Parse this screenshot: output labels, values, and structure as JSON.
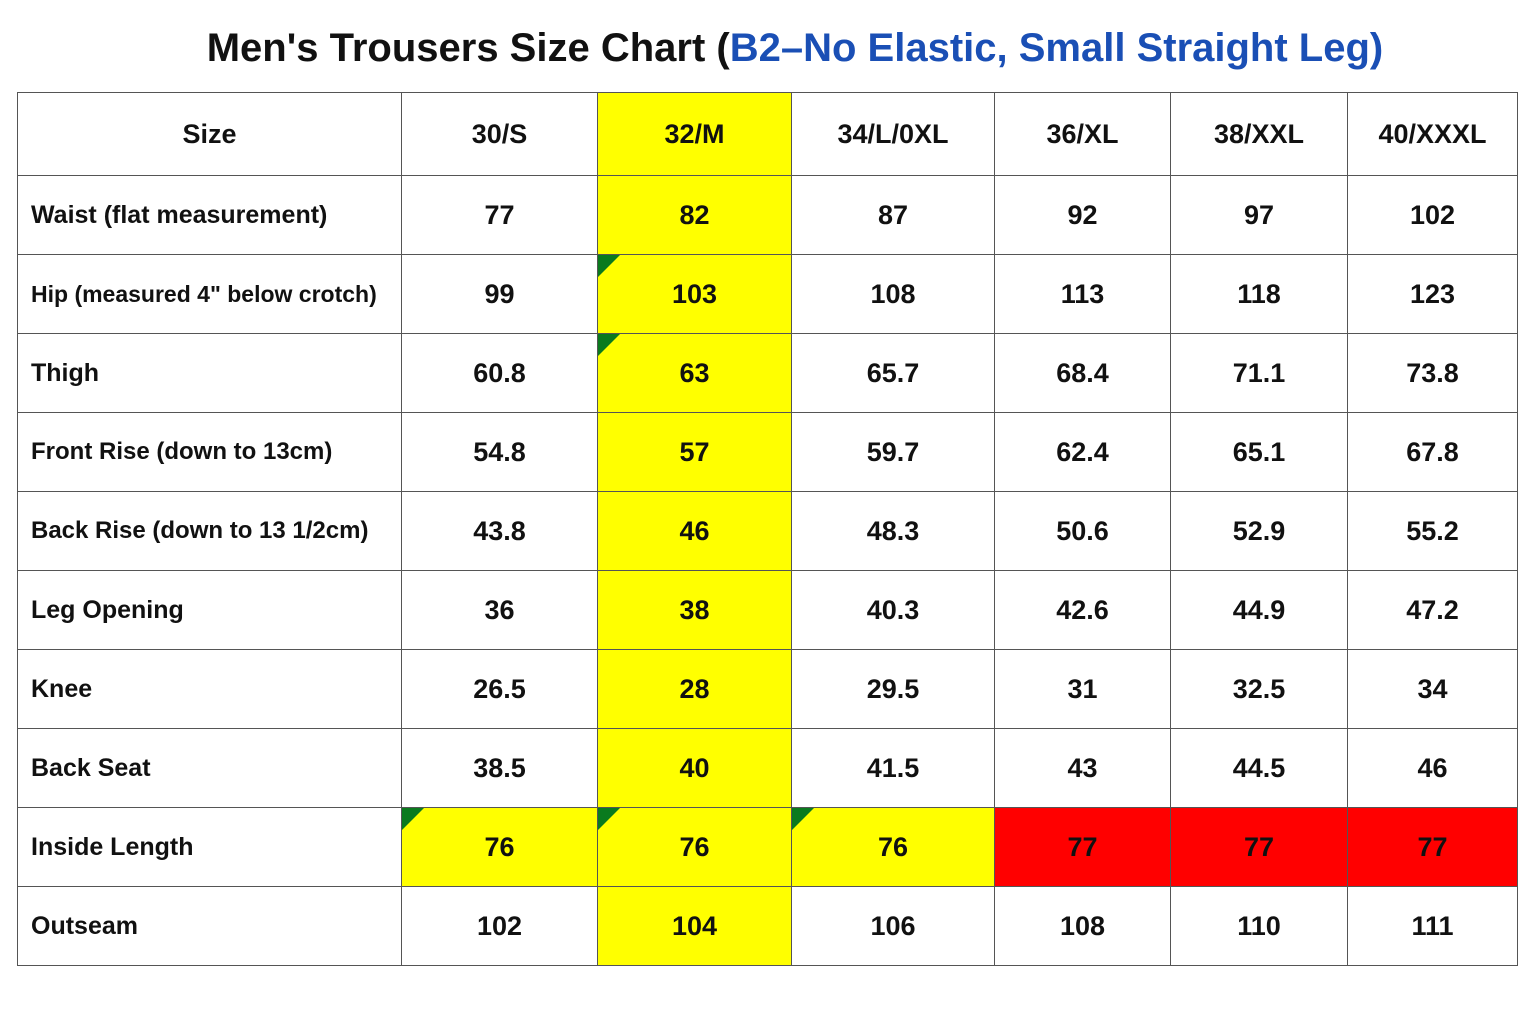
{
  "title": {
    "main": "Men's Trousers Size Chart (",
    "sub": "B2–No Elastic, Small Straight Leg",
    "close": ")"
  },
  "colors": {
    "title_accent": "#1a4fb5",
    "highlight_yellow": "#ffff00",
    "highlight_red": "#ff0000",
    "comment_marker": "#0a7a1e"
  },
  "table": {
    "header_label": "Size",
    "sizes": [
      "30/S",
      "32/M",
      "34/L/0XL",
      "36/XL",
      "38/XXL",
      "40/XXXL"
    ],
    "highlighted_column": "32/M",
    "rows": [
      {
        "label": "Waist (flat measurement)",
        "values": [
          "77",
          "82",
          "87",
          "92",
          "97",
          "102"
        ]
      },
      {
        "label": "Hip (measured 4\" below crotch)",
        "values": [
          "99",
          "103",
          "108",
          "113",
          "118",
          "123"
        ]
      },
      {
        "label": "Thigh",
        "values": [
          "60.8",
          "63",
          "65.7",
          "68.4",
          "71.1",
          "73.8"
        ]
      },
      {
        "label": "Front Rise (down to 13cm)",
        "values": [
          "54.8",
          "57",
          "59.7",
          "62.4",
          "65.1",
          "67.8"
        ]
      },
      {
        "label": "Back Rise (down to 13 1/2cm)",
        "values": [
          "43.8",
          "46",
          "48.3",
          "50.6",
          "52.9",
          "55.2"
        ]
      },
      {
        "label": "Leg Opening",
        "values": [
          "36",
          "38",
          "40.3",
          "42.6",
          "44.9",
          "47.2"
        ]
      },
      {
        "label": "Knee",
        "values": [
          "26.5",
          "28",
          "29.5",
          "31",
          "32.5",
          "34"
        ]
      },
      {
        "label": "Back Seat",
        "values": [
          "38.5",
          "40",
          "41.5",
          "43",
          "44.5",
          "46"
        ]
      },
      {
        "label": "Inside Length",
        "values": [
          "76",
          "76",
          "76",
          "77",
          "77",
          "77"
        ]
      },
      {
        "label": "Outseam",
        "values": [
          "102",
          "104",
          "106",
          "108",
          "110",
          "111"
        ]
      }
    ]
  }
}
